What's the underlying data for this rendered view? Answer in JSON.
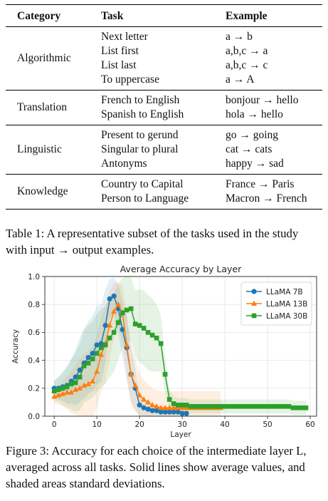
{
  "table": {
    "headers": [
      "Category",
      "Task",
      "Example"
    ],
    "groups": [
      {
        "category": "Algorithmic",
        "tasks": [
          "Next letter",
          "List first",
          "List last",
          "To uppercase"
        ],
        "examples": [
          "a → b",
          "a,b,c → a",
          "a,b,c → c",
          "a → A"
        ]
      },
      {
        "category": "Translation",
        "tasks": [
          "French to English",
          "Spanish to English"
        ],
        "examples": [
          "bonjour → hello",
          "hola → hello"
        ]
      },
      {
        "category": "Linguistic",
        "tasks": [
          "Present to gerund",
          "Singular to plural",
          "Antonyms"
        ],
        "examples": [
          "go → going",
          "cat → cats",
          "happy → sad"
        ]
      },
      {
        "category": "Knowledge",
        "tasks": [
          "Country to Capital",
          "Person to Language"
        ],
        "examples": [
          "France → Paris",
          "Macron → French"
        ]
      }
    ]
  },
  "table_caption": "Table 1: A representative subset of the tasks used in the study with input → output examples.",
  "figure_caption": "Figure 3: Accuracy for each choice of the intermediate layer L, averaged across all tasks. Solid lines show average values, and shaded areas standard deviations.",
  "chart_data": {
    "type": "line",
    "title": "Average Accuracy by Layer",
    "xlabel": "Layer",
    "ylabel": "Accuracy",
    "xlim": [
      -2.2,
      61.5
    ],
    "ylim": [
      0,
      1.0
    ],
    "xticks": [
      0,
      10,
      20,
      30,
      40,
      50,
      60
    ],
    "yticks": [
      0.0,
      0.2,
      0.4,
      0.6,
      0.8,
      1.0
    ],
    "grid": true,
    "legend_position": "top-right",
    "series": [
      {
        "name": "LLaMA 7B",
        "color": "#1f77b4",
        "marker": "circle",
        "x": [
          0,
          1,
          2,
          3,
          4,
          5,
          6,
          7,
          8,
          9,
          10,
          11,
          12,
          13,
          14,
          15,
          16,
          17,
          18,
          19,
          20,
          21,
          22,
          23,
          24,
          25,
          26,
          27,
          28,
          29,
          30,
          31
        ],
        "y": [
          0.2,
          0.2,
          0.21,
          0.22,
          0.25,
          0.28,
          0.33,
          0.38,
          0.42,
          0.45,
          0.51,
          0.52,
          0.65,
          0.84,
          0.86,
          0.77,
          0.62,
          0.49,
          0.3,
          0.2,
          0.08,
          0.06,
          0.05,
          0.04,
          0.04,
          0.03,
          0.03,
          0.03,
          0.03,
          0.03,
          0.02,
          0.02
        ],
        "std": [
          0.06,
          0.08,
          0.1,
          0.13,
          0.16,
          0.2,
          0.23,
          0.25,
          0.26,
          0.27,
          0.28,
          0.28,
          0.26,
          0.14,
          0.13,
          0.18,
          0.2,
          0.22,
          0.2,
          0.15,
          0.08,
          0.06,
          0.05,
          0.04,
          0.04,
          0.03,
          0.03,
          0.03,
          0.03,
          0.03,
          0.02,
          0.02
        ]
      },
      {
        "name": "LLaMA 13B",
        "color": "#ff7f0e",
        "marker": "triangle",
        "x": [
          0,
          1,
          2,
          3,
          4,
          5,
          6,
          7,
          8,
          9,
          10,
          11,
          12,
          13,
          14,
          15,
          16,
          17,
          18,
          19,
          20,
          21,
          22,
          23,
          24,
          25,
          26,
          27,
          28,
          29,
          30,
          31,
          32,
          33,
          34,
          35,
          36,
          37,
          38,
          39
        ],
        "y": [
          0.14,
          0.15,
          0.16,
          0.17,
          0.17,
          0.19,
          0.2,
          0.22,
          0.23,
          0.25,
          0.32,
          0.44,
          0.52,
          0.65,
          0.75,
          0.8,
          0.74,
          0.51,
          0.3,
          0.22,
          0.15,
          0.12,
          0.1,
          0.08,
          0.07,
          0.06,
          0.06,
          0.06,
          0.06,
          0.06,
          0.06,
          0.06,
          0.06,
          0.06,
          0.06,
          0.06,
          0.06,
          0.06,
          0.06,
          0.06
        ],
        "std": [
          0.05,
          0.07,
          0.09,
          0.12,
          0.15,
          0.18,
          0.21,
          0.23,
          0.24,
          0.25,
          0.26,
          0.27,
          0.27,
          0.24,
          0.2,
          0.16,
          0.2,
          0.23,
          0.22,
          0.19,
          0.16,
          0.14,
          0.13,
          0.12,
          0.12,
          0.12,
          0.12,
          0.12,
          0.12,
          0.12,
          0.12,
          0.12,
          0.12,
          0.12,
          0.12,
          0.12,
          0.12,
          0.12,
          0.12,
          0.12
        ]
      },
      {
        "name": "LLaMA 30B",
        "color": "#2ca02c",
        "marker": "square",
        "x": [
          0,
          1,
          2,
          3,
          4,
          5,
          6,
          7,
          8,
          9,
          10,
          11,
          12,
          13,
          14,
          15,
          16,
          17,
          18,
          19,
          20,
          21,
          22,
          23,
          24,
          25,
          26,
          27,
          28,
          29,
          30,
          31,
          32,
          33,
          34,
          35,
          36,
          37,
          38,
          39,
          40,
          41,
          42,
          43,
          44,
          45,
          46,
          47,
          48,
          49,
          50,
          51,
          52,
          53,
          54,
          55,
          56,
          57,
          58,
          59
        ],
        "y": [
          0.18,
          0.19,
          0.2,
          0.21,
          0.23,
          0.24,
          0.28,
          0.36,
          0.38,
          0.41,
          0.45,
          0.49,
          0.51,
          0.56,
          0.6,
          0.67,
          0.74,
          0.76,
          0.77,
          0.66,
          0.65,
          0.63,
          0.6,
          0.58,
          0.56,
          0.52,
          0.3,
          0.12,
          0.09,
          0.08,
          0.08,
          0.08,
          0.07,
          0.07,
          0.07,
          0.07,
          0.07,
          0.07,
          0.07,
          0.07,
          0.07,
          0.07,
          0.07,
          0.07,
          0.07,
          0.07,
          0.07,
          0.07,
          0.07,
          0.07,
          0.07,
          0.07,
          0.07,
          0.07,
          0.07,
          0.07,
          0.06,
          0.06,
          0.06,
          0.06
        ],
        "std": [
          0.07,
          0.09,
          0.12,
          0.15,
          0.18,
          0.21,
          0.24,
          0.26,
          0.27,
          0.27,
          0.28,
          0.28,
          0.28,
          0.28,
          0.28,
          0.27,
          0.25,
          0.24,
          0.23,
          0.24,
          0.26,
          0.27,
          0.27,
          0.26,
          0.24,
          0.2,
          0.12,
          0.07,
          0.05,
          0.05,
          0.05,
          0.05,
          0.05,
          0.05,
          0.05,
          0.05,
          0.05,
          0.05,
          0.05,
          0.05,
          0.05,
          0.05,
          0.05,
          0.05,
          0.05,
          0.05,
          0.05,
          0.05,
          0.05,
          0.05,
          0.05,
          0.05,
          0.05,
          0.05,
          0.05,
          0.05,
          0.05,
          0.05,
          0.05,
          0.05
        ]
      }
    ]
  }
}
